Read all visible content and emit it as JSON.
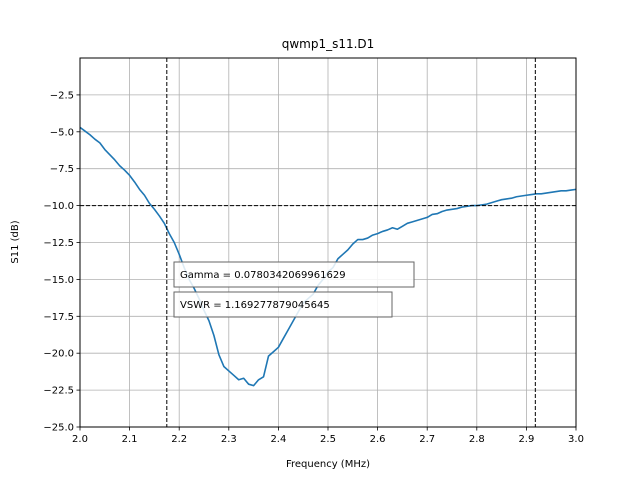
{
  "chart_data": {
    "type": "line",
    "title": "qwmp1_s11.D1",
    "xlabel": "Frequency (MHz)",
    "ylabel": "S11 (dB)",
    "xlim": [
      2.0,
      3.0
    ],
    "ylim": [
      -25.0,
      0.0
    ],
    "xticks": [
      2.0,
      2.1,
      2.2,
      2.3,
      2.4,
      2.5,
      2.6,
      2.7,
      2.8,
      2.9,
      3.0
    ],
    "xtick_labels": [
      "2.0",
      "2.1",
      "2.2",
      "2.3",
      "2.4",
      "2.5",
      "2.6",
      "2.7",
      "2.8",
      "2.9",
      "3.0"
    ],
    "yticks": [
      -25.0,
      -22.5,
      -20.0,
      -17.5,
      -15.0,
      -12.5,
      -10.0,
      -7.5,
      -5.0,
      -2.5
    ],
    "ytick_labels": [
      "−25.0",
      "−22.5",
      "−20.0",
      "−17.5",
      "−15.0",
      "−12.5",
      "−10.0",
      "−7.5",
      "−5.0",
      "−2.5"
    ],
    "grid": true,
    "line_color": "#1f77b4",
    "series": [
      {
        "x": [
          2.0,
          2.01,
          2.02,
          2.03,
          2.04,
          2.05,
          2.06,
          2.07,
          2.08,
          2.09,
          2.1,
          2.11,
          2.12,
          2.13,
          2.14,
          2.15,
          2.16,
          2.17,
          2.18,
          2.19,
          2.2,
          2.21,
          2.22,
          2.23,
          2.24,
          2.25,
          2.26,
          2.27,
          2.28,
          2.29,
          2.3,
          2.31,
          2.32,
          2.33,
          2.34,
          2.35,
          2.36,
          2.37,
          2.38,
          2.39,
          2.4,
          2.41,
          2.42,
          2.43,
          2.44,
          2.45,
          2.46,
          2.47,
          2.48,
          2.49,
          2.5,
          2.51,
          2.52,
          2.53,
          2.54,
          2.55,
          2.56,
          2.57,
          2.58,
          2.59,
          2.6,
          2.61,
          2.62,
          2.63,
          2.64,
          2.65,
          2.66,
          2.67,
          2.68,
          2.69,
          2.7,
          2.71,
          2.72,
          2.73,
          2.74,
          2.75,
          2.76,
          2.77,
          2.78,
          2.79,
          2.8,
          2.81,
          2.82,
          2.83,
          2.84,
          2.85,
          2.86,
          2.87,
          2.88,
          2.89,
          2.9,
          2.91,
          2.92,
          2.93,
          2.94,
          2.95,
          2.96,
          2.97,
          2.98,
          2.99,
          3.0
        ],
        "y": [
          -4.7,
          -4.95,
          -5.2,
          -5.5,
          -5.75,
          -6.2,
          -6.55,
          -6.9,
          -7.3,
          -7.6,
          -7.95,
          -8.4,
          -8.9,
          -9.3,
          -9.85,
          -10.25,
          -10.7,
          -11.2,
          -11.9,
          -12.5,
          -13.3,
          -14.2,
          -15.0,
          -15.6,
          -16.3,
          -17.1,
          -17.8,
          -18.8,
          -20.1,
          -20.9,
          -21.2,
          -21.5,
          -21.8,
          -21.7,
          -22.1,
          -22.2,
          -21.8,
          -21.6,
          -20.2,
          -19.9,
          -19.6,
          -19.0,
          -18.4,
          -17.8,
          -17.2,
          -16.6,
          -16.3,
          -16.0,
          -15.4,
          -15.0,
          -14.5,
          -14.2,
          -13.6,
          -13.3,
          -13.0,
          -12.6,
          -12.3,
          -12.3,
          -12.2,
          -12.0,
          -11.9,
          -11.75,
          -11.65,
          -11.5,
          -11.6,
          -11.4,
          -11.2,
          -11.1,
          -11.0,
          -10.9,
          -10.8,
          -10.6,
          -10.55,
          -10.4,
          -10.3,
          -10.25,
          -10.2,
          -10.1,
          -10.05,
          -10.0,
          -10.0,
          -9.95,
          -9.9,
          -9.8,
          -9.7,
          -9.6,
          -9.55,
          -9.5,
          -9.4,
          -9.35,
          -9.3,
          -9.25,
          -9.2,
          -9.2,
          -9.15,
          -9.1,
          -9.05,
          -9.0,
          -9.0,
          -8.95,
          -8.9
        ],
        "x_compact_note_removed": true
      }
    ],
    "reference_lines": {
      "horizontal_y": -10.0,
      "vertical_x": [
        2.175,
        2.918
      ]
    },
    "annotations": [
      {
        "text": "Gamma = 0.0780342069961629"
      },
      {
        "text": "VSWR = 1.169277879045645"
      }
    ]
  }
}
